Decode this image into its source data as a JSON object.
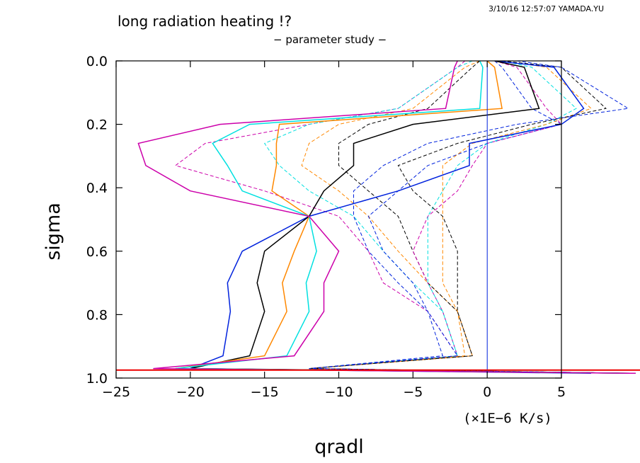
{
  "header": {
    "title": "long radiation heating !?",
    "subtitle": "− parameter study −",
    "stamp": "3/10/16 12:57:07 YAMADA.YU"
  },
  "chart_data": {
    "type": "line",
    "title": "long radiation heating !?",
    "subtitle": "− parameter study −",
    "xlabel": "qradl",
    "ylabel": "sigma",
    "x_unit": "(×1E−6 K/s)",
    "xlim": [
      -25,
      5
    ],
    "ylim": [
      1.0,
      0.0
    ],
    "y_inverted": true,
    "grid": false,
    "xticks": [
      -25,
      -20,
      -15,
      -10,
      -5,
      0,
      5
    ],
    "xtick_labels": [
      "−25",
      "−20",
      "−15",
      "−10",
      "−5",
      "0",
      "5"
    ],
    "yticks": [
      0.0,
      0.2,
      0.4,
      0.6,
      0.8,
      1.0
    ],
    "ytick_labels": [
      "0.0",
      "0.2",
      "0.4",
      "0.6",
      "0.8",
      "1.0"
    ],
    "sigma_levels": [
      0.0,
      0.02,
      0.15,
      0.2,
      0.26,
      0.33,
      0.41,
      0.49,
      0.6,
      0.7,
      0.79,
      0.93,
      0.97,
      0.985
    ],
    "colors": {
      "magenta": "#cc00aa",
      "cyan": "#00e0e0",
      "orange": "#ff8800",
      "black": "#000000",
      "blue": "#0022dd",
      "red": "#ee0000"
    },
    "series": [
      {
        "color": "#0022dd",
        "style": "solid",
        "width": 1.5,
        "x": [
          0.5,
          4.5,
          6.5,
          5,
          -1.2,
          -1.2,
          -6,
          -12,
          -16.5,
          -17.5,
          -17.3,
          -17.8,
          -20,
          7
        ]
      },
      {
        "color": "#000000",
        "style": "solid",
        "width": 1.5,
        "x": [
          0.5,
          2.5,
          3.5,
          -5,
          -9,
          -9,
          -11,
          -12,
          -15,
          -15.5,
          -15,
          -16,
          -20,
          10
        ]
      },
      {
        "color": "#ff8800",
        "style": "solid",
        "width": 1.5,
        "x": [
          0,
          0.5,
          1,
          -14,
          -14.2,
          -14.2,
          -14.5,
          -12,
          -13,
          -13.8,
          -13.5,
          -15,
          -21,
          10
        ]
      },
      {
        "color": "#00e0e0",
        "style": "solid",
        "width": 1.5,
        "x": [
          -0.5,
          -0.3,
          -0.5,
          -16,
          -18.5,
          -17.5,
          -16.5,
          -12,
          -11.5,
          -12.2,
          -12,
          -13.5,
          -21,
          10
        ]
      },
      {
        "color": "#cc00aa",
        "style": "solid",
        "width": 1.5,
        "x": [
          -2,
          -2.2,
          -2.8,
          -18,
          -23.5,
          -23,
          -20,
          -12,
          -10,
          -11,
          -11,
          -13,
          -22.5,
          10
        ]
      },
      {
        "color": "#cc00aa",
        "style": "dashed",
        "width": 1,
        "x": [
          -1.5,
          -2,
          -6,
          -12,
          -19,
          -21,
          -15,
          -10,
          -8,
          -7,
          -4,
          -2,
          -12,
          10
        ]
      },
      {
        "color": "#00e0e0",
        "style": "dashed",
        "width": 1,
        "x": [
          -1,
          -2,
          -6,
          -12,
          -15,
          -14,
          -12,
          -9,
          -7,
          -5,
          -3,
          -2,
          -12,
          10
        ]
      },
      {
        "color": "#ff8800",
        "style": "dashed",
        "width": 1,
        "x": [
          -0.5,
          -1.5,
          -5,
          -10,
          -12,
          -12.5,
          -10,
          -8,
          -6,
          -4,
          -2,
          -1.5,
          -12,
          10
        ]
      },
      {
        "color": "#000000",
        "style": "dashed",
        "width": 1,
        "x": [
          -0.5,
          -1,
          -4,
          -8,
          -10,
          -10,
          -8,
          -6,
          -5,
          -4,
          -2,
          -1,
          -12,
          10
        ]
      },
      {
        "color": "#0022dd",
        "style": "dashed",
        "width": 1,
        "x": [
          0.5,
          1,
          3,
          5,
          0,
          -4,
          -6,
          -8,
          -7,
          -5,
          -4,
          -3,
          -12,
          10
        ]
      },
      {
        "color": "#cc00aa",
        "style": "dashed",
        "width": 1,
        "x": [
          0.5,
          2,
          4,
          5,
          0,
          -1,
          -2,
          -4,
          -5,
          -4,
          -3,
          -2,
          -12,
          10
        ]
      },
      {
        "color": "#00e0e0",
        "style": "dashed",
        "width": 1,
        "x": [
          1,
          3,
          6,
          4,
          0,
          -2,
          -3,
          -4,
          -4,
          -4,
          -3,
          -2,
          -12,
          10
        ]
      },
      {
        "color": "#ff8800",
        "style": "dashed",
        "width": 1,
        "x": [
          1,
          4,
          7,
          4,
          -1,
          -3,
          -3,
          -3,
          -3,
          -3,
          -2,
          -1,
          -12,
          10
        ]
      },
      {
        "color": "#000000",
        "style": "dashed",
        "width": 1,
        "x": [
          1,
          5,
          8,
          3,
          -2,
          -6,
          -5,
          -3,
          -2,
          -2,
          -2,
          -1,
          -12,
          10
        ]
      },
      {
        "color": "#0022dd",
        "style": "dashed",
        "width": 1,
        "x": [
          2,
          5,
          9.5,
          2,
          -4,
          -7,
          -9,
          -9,
          -8,
          -6,
          -4,
          -2,
          -12,
          10
        ]
      },
      {
        "color": "#0022dd",
        "style": "solid",
        "width": 1,
        "x": [
          0,
          0,
          0,
          0,
          0,
          0,
          0,
          0,
          0,
          0,
          0,
          0,
          0,
          0
        ]
      }
    ]
  }
}
